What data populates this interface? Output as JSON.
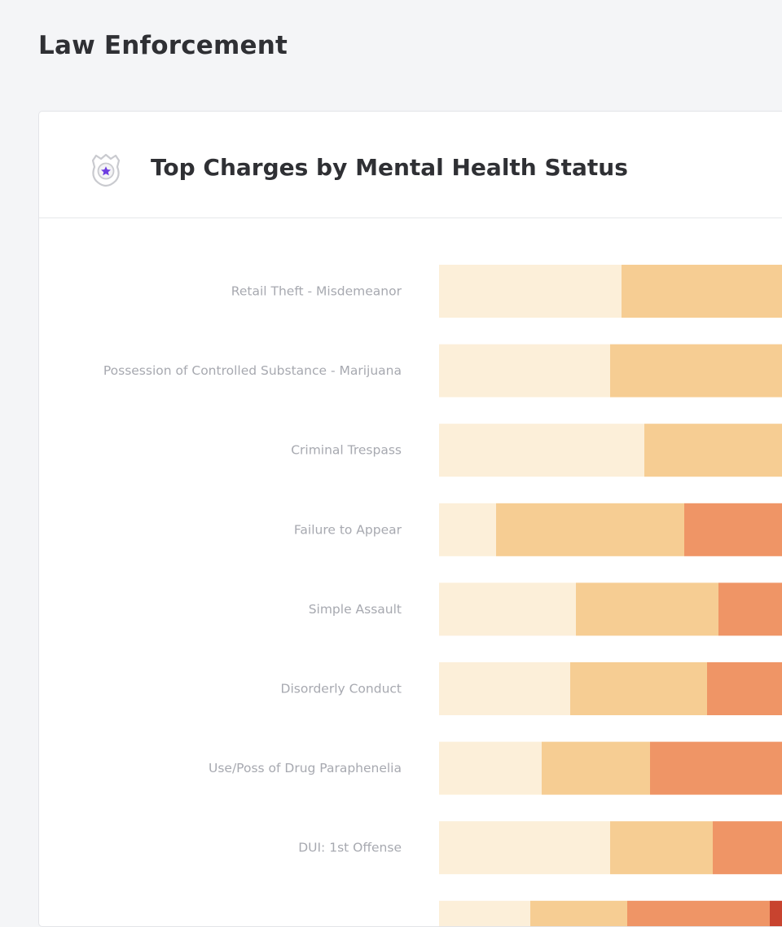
{
  "page": {
    "title": "Law Enforcement"
  },
  "card": {
    "title": "Top Charges by Mental Health Status",
    "icon": "police-badge-icon"
  },
  "colors": {
    "segment_1": "#fcefd9",
    "segment_2": "#f6cd93",
    "segment_3": "#ef9566",
    "segment_4": "#c8432f",
    "badge_accent": "#6d3de0"
  },
  "chart_data": {
    "type": "bar",
    "orientation": "horizontal",
    "stacked": true,
    "categories": [
      "Retail Theft - Misdemeanor",
      "Possession of Controlled Substance - Marijuana",
      "Criminal Trespass",
      "Failure to Appear",
      "Simple Assault",
      "Disorderly Conduct",
      "Use/Poss of Drug Paraphenelia",
      "DUI: 1st Offense",
      ""
    ],
    "series": [
      {
        "values": [
          32,
          30,
          36,
          10,
          24,
          23,
          18,
          30,
          16
        ]
      },
      {
        "values": [
          68,
          70,
          64,
          33,
          25,
          24,
          19,
          18,
          17
        ]
      },
      {
        "values": [
          0,
          0,
          0,
          57,
          51,
          53,
          63,
          52,
          25
        ]
      },
      {
        "values": [
          0,
          0,
          0,
          0,
          0,
          0,
          0,
          0,
          42
        ]
      }
    ],
    "xlim": [
      0,
      100
    ],
    "grid": false,
    "legend": "none"
  }
}
